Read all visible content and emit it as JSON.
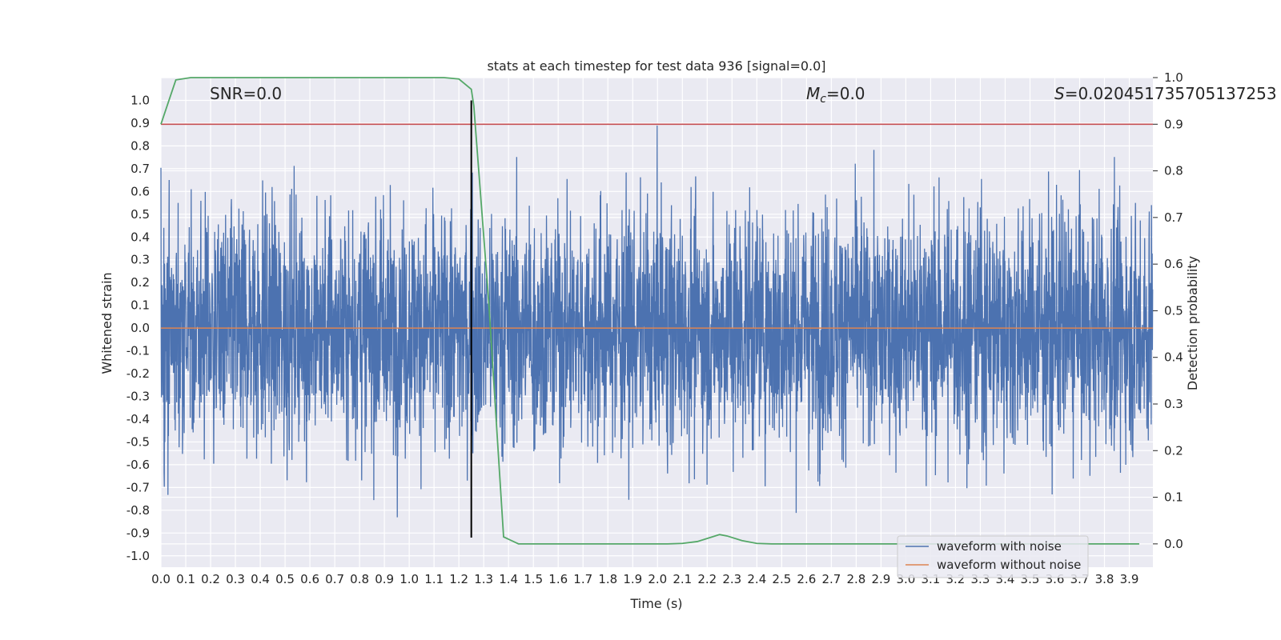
{
  "chart_data": {
    "type": "line",
    "title": "stats at each timestep for test data 936 [signal=0.0]",
    "xlabel": "Time (s)",
    "ylabel": "Whitened strain",
    "y2label": "Detection probability",
    "xlim": [
      0.0,
      3.995
    ],
    "ylim": [
      -1.05,
      1.1
    ],
    "y2lim": [
      -0.05,
      1.0
    ],
    "x_ticks": [
      0.0,
      0.1,
      0.2,
      0.3,
      0.4,
      0.5,
      0.6,
      0.7,
      0.8,
      0.9,
      1.0,
      1.1,
      1.2,
      1.3,
      1.4,
      1.5,
      1.6,
      1.7,
      1.8,
      1.9,
      2.0,
      2.1,
      2.2,
      2.3,
      2.4,
      2.5,
      2.6,
      2.7,
      2.8,
      2.9,
      3.0,
      3.1,
      3.2,
      3.3,
      3.4,
      3.5,
      3.6,
      3.7,
      3.8,
      3.9
    ],
    "y_ticks": [
      -1.0,
      -0.9,
      -0.8,
      -0.7,
      -0.6,
      -0.5,
      -0.4,
      -0.3,
      -0.2,
      -0.1,
      0.0,
      0.1,
      0.2,
      0.3,
      0.4,
      0.5,
      0.6,
      0.7,
      0.8,
      0.9,
      1.0
    ],
    "y2_ticks": [
      0.0,
      0.1,
      0.2,
      0.3,
      0.4,
      0.5,
      0.6,
      0.7,
      0.8,
      0.9,
      1.0
    ],
    "annotations": {
      "snr": "SNR=0.0",
      "mc_symbol": "M",
      "mc_sub": "c",
      "mc_value": "=0.0",
      "s_symbol": "S",
      "s_value": "=0.020451735705137253"
    },
    "series": [
      {
        "name": "waveform with noise",
        "color": "#4c72b0",
        "axis": "left",
        "kind": "noise",
        "n": 4096,
        "seed": 936,
        "envelope": [
          -0.92,
          1.0
        ]
      },
      {
        "name": "waveform without noise",
        "color": "#dd8452",
        "axis": "left",
        "x": [
          0.0,
          3.995
        ],
        "y": [
          0.0,
          0.0
        ]
      },
      {
        "name": "detection probability",
        "color": "#55a868",
        "axis": "right",
        "x": [
          0.0,
          0.06,
          0.12,
          0.18,
          0.24,
          0.3,
          0.36,
          0.42,
          0.48,
          0.54,
          0.6,
          0.66,
          0.72,
          0.78,
          0.84,
          0.9,
          0.96,
          1.02,
          1.08,
          1.14,
          1.2,
          1.25,
          1.26,
          1.32,
          1.38,
          1.44,
          1.5,
          1.56,
          1.62,
          1.68,
          1.74,
          1.8,
          1.86,
          1.92,
          1.98,
          2.04,
          2.1,
          2.16,
          2.22,
          2.25,
          2.28,
          2.34,
          2.4,
          2.46,
          2.52,
          2.58,
          2.64,
          2.7,
          2.76,
          2.82,
          2.88,
          2.94,
          3.0,
          3.06,
          3.12,
          3.18,
          3.24,
          3.3,
          3.36,
          3.42,
          3.48,
          3.54,
          3.6,
          3.66,
          3.72,
          3.78,
          3.84,
          3.9,
          3.94
        ],
        "y": [
          0.9,
          0.995,
          1.0,
          1.0,
          1.0,
          1.0,
          1.0,
          1.0,
          1.0,
          1.0,
          1.0,
          1.0,
          1.0,
          1.0,
          1.0,
          1.0,
          1.0,
          1.0,
          1.0,
          1.0,
          0.997,
          0.975,
          0.94,
          0.52,
          0.015,
          0.0,
          0.0,
          0.0,
          0.0,
          0.0,
          0.0,
          0.0,
          0.0,
          0.0,
          0.0,
          0.0,
          0.001,
          0.005,
          0.015,
          0.02,
          0.017,
          0.007,
          0.001,
          0.0,
          0.0,
          0.0,
          0.0,
          0.0,
          0.0,
          0.0,
          0.0,
          0.0,
          0.0,
          0.0,
          0.0,
          0.0,
          0.0,
          0.0,
          0.0,
          0.0,
          0.0,
          0.0,
          0.0,
          0.0,
          0.0,
          0.0,
          0.0,
          0.0,
          0.0
        ]
      }
    ],
    "threshold": {
      "axis": "right",
      "value": 0.9,
      "color": "#c44e52"
    },
    "marker": {
      "x": 1.25,
      "y_range": [
        -0.92,
        1.0
      ],
      "color": "#000000"
    },
    "legend": {
      "placement": "lower-right",
      "entries": [
        {
          "label": "waveform with noise",
          "color": "#4c72b0"
        },
        {
          "label": "waveform without noise",
          "color": "#dd8452"
        }
      ]
    },
    "grid": true,
    "plot_background": "#eaeaf2"
  }
}
